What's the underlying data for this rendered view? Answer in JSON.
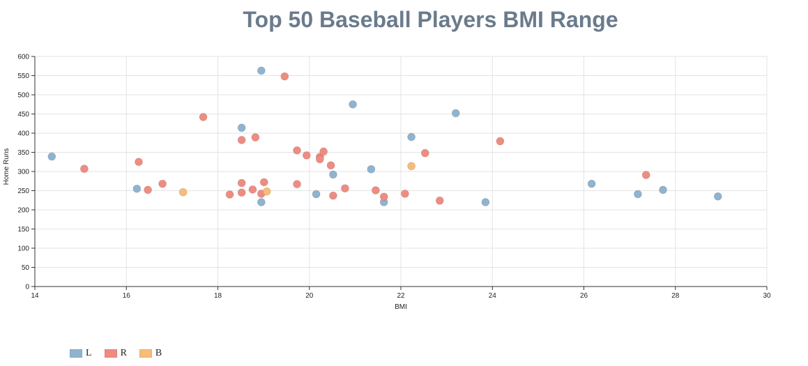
{
  "chart_data": {
    "type": "scatter",
    "title": "Top 50 Baseball Players BMI Range",
    "xlabel": "BMI",
    "ylabel": "Home Runs",
    "xlim": [
      14,
      30
    ],
    "ylim": [
      0,
      600
    ],
    "x_ticks": [
      14,
      16,
      18,
      20,
      22,
      24,
      26,
      28,
      30
    ],
    "y_ticks": [
      0,
      50,
      100,
      150,
      200,
      250,
      300,
      350,
      400,
      450,
      500,
      550,
      600
    ],
    "grid": true,
    "legend_position": "bottom-left",
    "series": [
      {
        "name": "L",
        "color": "#8fb4d0",
        "points": [
          [
            14.37,
            339
          ],
          [
            16.23,
            255
          ],
          [
            18.52,
            414
          ],
          [
            18.95,
            563
          ],
          [
            18.95,
            220
          ],
          [
            20.15,
            241
          ],
          [
            20.52,
            292
          ],
          [
            20.95,
            475
          ],
          [
            21.35,
            306
          ],
          [
            21.63,
            220
          ],
          [
            22.23,
            390
          ],
          [
            23.2,
            452
          ],
          [
            23.85,
            220
          ],
          [
            26.17,
            268
          ],
          [
            27.18,
            241
          ],
          [
            27.73,
            252
          ],
          [
            28.93,
            235
          ]
        ]
      },
      {
        "name": "R",
        "color": "#ef8c82",
        "points": [
          [
            15.08,
            307
          ],
          [
            16.27,
            325
          ],
          [
            16.47,
            252
          ],
          [
            16.79,
            268
          ],
          [
            17.68,
            442
          ],
          [
            18.26,
            240
          ],
          [
            18.52,
            382
          ],
          [
            18.52,
            270
          ],
          [
            18.52,
            245
          ],
          [
            18.76,
            253
          ],
          [
            18.82,
            389
          ],
          [
            18.95,
            242
          ],
          [
            19.01,
            272
          ],
          [
            19.46,
            548
          ],
          [
            19.73,
            355
          ],
          [
            19.73,
            267
          ],
          [
            19.94,
            342
          ],
          [
            20.23,
            338
          ],
          [
            20.23,
            332
          ],
          [
            20.31,
            352
          ],
          [
            20.47,
            316
          ],
          [
            20.52,
            237
          ],
          [
            20.78,
            256
          ],
          [
            21.45,
            251
          ],
          [
            21.63,
            234
          ],
          [
            22.09,
            242
          ],
          [
            22.53,
            348
          ],
          [
            22.85,
            224
          ],
          [
            24.17,
            379
          ],
          [
            27.36,
            291
          ]
        ]
      },
      {
        "name": "B",
        "color": "#f7bd78",
        "points": [
          [
            17.24,
            246
          ],
          [
            19.07,
            248
          ],
          [
            22.23,
            314
          ]
        ]
      }
    ]
  }
}
